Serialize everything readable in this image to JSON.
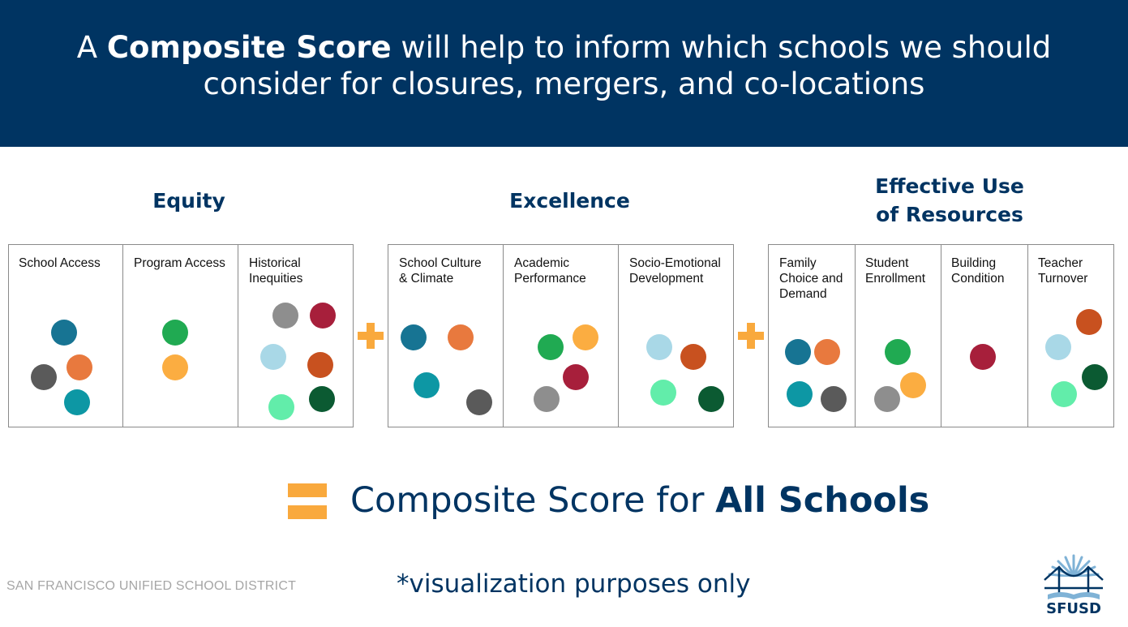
{
  "header": {
    "line1_pre": "A ",
    "line1_bold": "Composite Score",
    "line1_post": " will help to inform which schools we should",
    "line2": "consider for closures, mergers, and co-locations"
  },
  "groups": {
    "equity": {
      "title": "Equity",
      "cells": [
        "School Access",
        "Program Access",
        "Historical\nInequities"
      ]
    },
    "excellence": {
      "title": "Excellence",
      "cells": [
        "School Culture\n& Climate",
        "Academic\nPerformance",
        "Socio-Emotional\nDevelopment"
      ]
    },
    "resources": {
      "title_line1": "Effective Use",
      "title_line2": "of Resources",
      "cells": [
        "Family\nChoice and\nDemand",
        "Student\nEnrollment",
        "Building\nCondition",
        "Teacher\nTurnover"
      ]
    }
  },
  "colors": {
    "navy": "#003462",
    "accent": "#f9a93d",
    "dot_teal_blue": "#177493",
    "dot_orange": "#e8793e",
    "dot_gray_dark": "#5a5a5a",
    "dot_teal": "#0d97a4",
    "dot_green": "#20aa52",
    "dot_yellow_orange": "#fbad41",
    "dot_gray": "#8e8e8e",
    "dot_crimson": "#a71f3b",
    "dot_light_blue": "#a9d8e7",
    "dot_burnt_orange": "#c8511f",
    "dot_mint": "#62edaa",
    "dot_dark_green": "#0b5a32"
  },
  "result": {
    "prefix": "Composite Score for ",
    "bold": "All Schools"
  },
  "note": "*visualization purposes only",
  "footer": {
    "district": "SAN FRANCISCO UNIFIED SCHOOL DISTRICT",
    "logo_text": "SFUSD"
  }
}
